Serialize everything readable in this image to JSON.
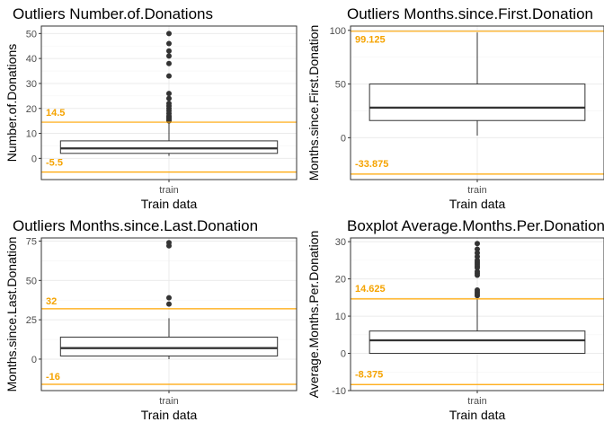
{
  "colors": {
    "panel_border": "#333333",
    "grid_major": "#ebebeb",
    "grid_minor": "#f5f5f5",
    "box": "#333333",
    "outlier_point": "#333333",
    "reference_line": "#ffa500",
    "reference_label": "#f5a300"
  },
  "chart_data": [
    {
      "type": "boxplot",
      "title": "Outliers Number.of.Donations",
      "xlabel": "Train data",
      "ylabel": "Number.of.Donations",
      "categories": [
        "train"
      ],
      "ylim": [
        -8.5,
        53
      ],
      "yticks": [
        0,
        10,
        20,
        30,
        40,
        50
      ],
      "grid": true,
      "box": {
        "min": 1,
        "q1": 2,
        "median": 4,
        "q3": 7,
        "whisker_high": 14
      },
      "outliers": [
        15,
        15.5,
        16,
        16.5,
        17,
        18,
        19,
        20,
        21,
        22,
        24,
        26,
        33,
        38,
        41,
        43,
        46,
        50
      ],
      "reference_lines": [
        {
          "value": 14.5,
          "label": "14.5",
          "label_y": 18.5
        },
        {
          "value": -5.5,
          "label": "-5.5",
          "label_y": -1.5
        }
      ]
    },
    {
      "type": "boxplot",
      "title": "Outliers Months.since.First.Donation",
      "xlabel": "Train data",
      "ylabel": "Months.since.First.Donation",
      "categories": [
        "train"
      ],
      "ylim": [
        -39,
        104
      ],
      "yticks": [
        0,
        50,
        100
      ],
      "grid": true,
      "box": {
        "min": 2,
        "q1": 16,
        "median": 28,
        "q3": 50,
        "whisker_high": 98
      },
      "outliers": [],
      "reference_lines": [
        {
          "value": 99.125,
          "label": "99.125",
          "label_y": 92
        },
        {
          "value": -33.875,
          "label": "-33.875",
          "label_y": -24
        }
      ]
    },
    {
      "type": "boxplot",
      "title": "Outliers Months.since.Last.Donation",
      "xlabel": "Train data",
      "ylabel": "Months.since.Last.Donation",
      "categories": [
        "train"
      ],
      "ylim": [
        -20,
        77
      ],
      "yticks": [
        0,
        25,
        50,
        75
      ],
      "grid": true,
      "box": {
        "min": 0,
        "q1": 2,
        "median": 7,
        "q3": 14,
        "whisker_high": 26
      },
      "outliers": [
        35,
        39,
        72,
        74
      ],
      "reference_lines": [
        {
          "value": 32,
          "label": "32",
          "label_y": 37
        },
        {
          "value": -16,
          "label": "-16",
          "label_y": -11
        }
      ]
    },
    {
      "type": "boxplot",
      "title": "Boxplot Average.Months.Per.Donation",
      "xlabel": "Train data",
      "ylabel": "Average.Months.Per.Donation",
      "categories": [
        "train"
      ],
      "ylim": [
        -10,
        31
      ],
      "yticks": [
        -10,
        0,
        10,
        20,
        30
      ],
      "grid": true,
      "box": {
        "min": 0,
        "q1": 0,
        "median": 3.5,
        "q3": 6,
        "whisker_high": 14.5
      },
      "outliers": [
        15.5,
        16,
        16.5,
        17,
        21,
        21.5,
        22,
        23,
        23.5,
        24,
        24.5,
        25,
        26,
        27,
        28,
        29.5
      ],
      "reference_lines": [
        {
          "value": 14.625,
          "label": "14.625",
          "label_y": 17.5
        },
        {
          "value": -8.375,
          "label": "-8.375",
          "label_y": -5.5
        }
      ]
    }
  ]
}
